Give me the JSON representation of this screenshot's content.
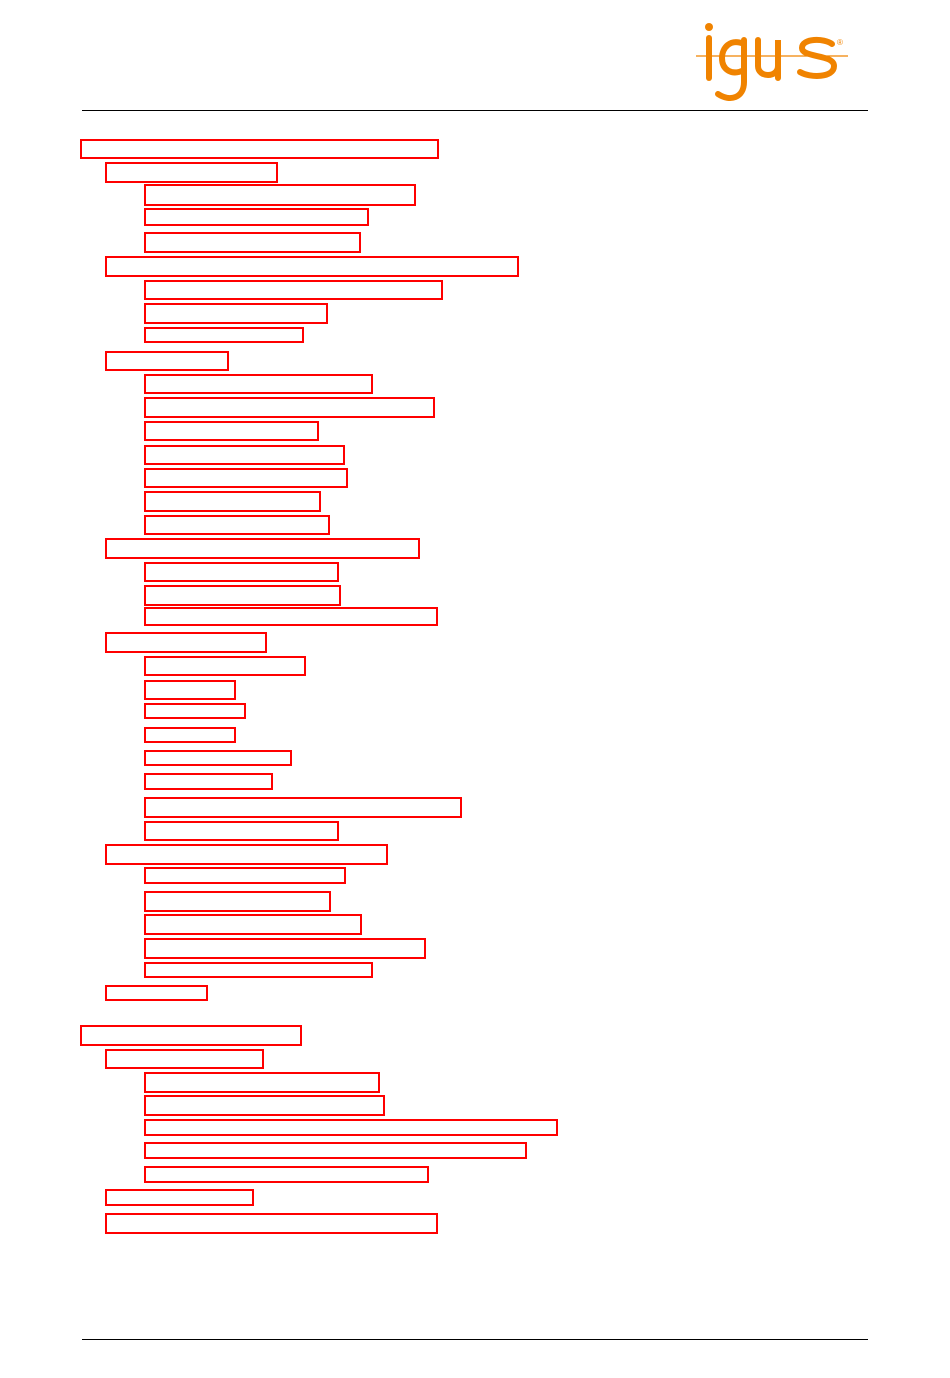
{
  "header": {
    "logo": {
      "text": "igus",
      "mark": "®",
      "color": "#f08300"
    }
  },
  "toc": {
    "link_border_color": "#ff0000",
    "levels": [
      1,
      2,
      3,
      3,
      3,
      2,
      3,
      3,
      3,
      2,
      3,
      3,
      3,
      3,
      3,
      3,
      3,
      2,
      3,
      3,
      3,
      2,
      3,
      3,
      3,
      3,
      3,
      3,
      3,
      3,
      2,
      3,
      3,
      3,
      3,
      3,
      2,
      1,
      2,
      3,
      3,
      3,
      3,
      3,
      2,
      2
    ]
  }
}
